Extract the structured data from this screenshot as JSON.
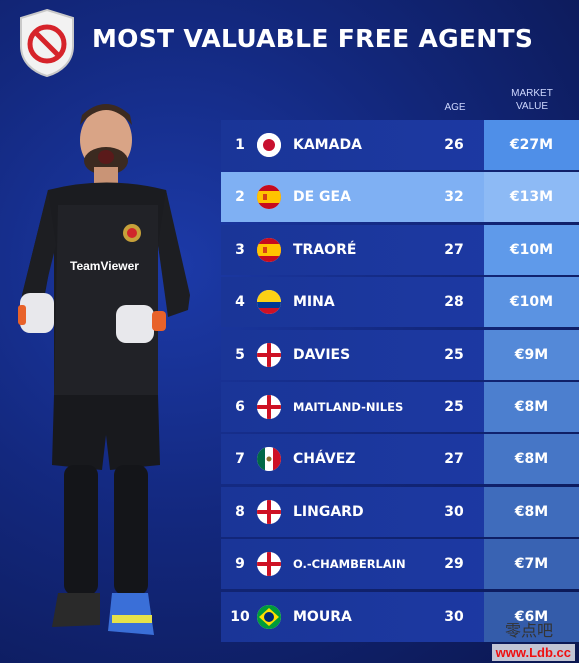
{
  "header": {
    "title": "MOST VALUABLE FREE AGENTS",
    "logo_icon": "no-entry-shield-icon"
  },
  "columns": {
    "age": "AGE",
    "market_value_line1": "MARKET",
    "market_value_line2": "VALUE"
  },
  "rows": [
    {
      "rank": "1",
      "flag": "japan",
      "name": "KAMADA",
      "age": "26",
      "value": "€27M",
      "highlight": false
    },
    {
      "rank": "2",
      "flag": "spain",
      "name": "DE GEA",
      "age": "32",
      "value": "€13M",
      "highlight": true
    },
    {
      "rank": "3",
      "flag": "spain",
      "name": "TRAORÉ",
      "age": "27",
      "value": "€10M",
      "highlight": false
    },
    {
      "rank": "4",
      "flag": "colombia",
      "name": "MINA",
      "age": "28",
      "value": "€10M",
      "highlight": false
    },
    {
      "rank": "5",
      "flag": "england",
      "name": "DAVIES",
      "age": "25",
      "value": "€9M",
      "highlight": false
    },
    {
      "rank": "6",
      "flag": "england",
      "name": "MAITLAND-NILES",
      "age": "25",
      "value": "€8M",
      "highlight": false
    },
    {
      "rank": "7",
      "flag": "mexico",
      "name": "CHÁVEZ",
      "age": "27",
      "value": "€8M",
      "highlight": false
    },
    {
      "rank": "8",
      "flag": "england",
      "name": "LINGARD",
      "age": "30",
      "value": "€8M",
      "highlight": false
    },
    {
      "rank": "9",
      "flag": "england",
      "name": "O.-CHAMBERLAIN",
      "age": "29",
      "value": "€7M",
      "highlight": false
    },
    {
      "rank": "10",
      "flag": "brazil",
      "name": "MOURA",
      "age": "30",
      "value": "€6M",
      "highlight": false
    }
  ],
  "value_column_colors": [
    "#4f8fe8",
    "#5a97ea",
    "#5f9aea",
    "#5b93e2",
    "#5489d8",
    "#4c7fcf",
    "#4676c6",
    "#3f6cbc",
    "#3963b3",
    "#345caa"
  ],
  "colors": {
    "highlight_row": "#7fb0f3",
    "row": "#1a3597"
  },
  "watermark": {
    "url": "www.Ldb.cc",
    "cn": "零点吧"
  }
}
